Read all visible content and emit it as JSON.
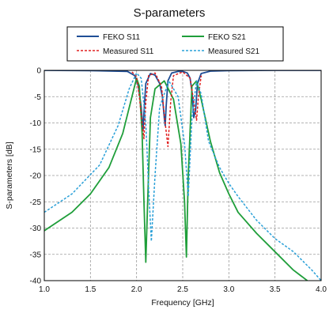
{
  "chart_data": {
    "type": "line",
    "title": "S-parameters",
    "xlabel": "Frequency [GHz]",
    "ylabel": "S-parameters [dB]",
    "xlim": [
      1.0,
      4.0
    ],
    "ylim": [
      -40,
      0
    ],
    "x_ticks": [
      1.0,
      1.5,
      2.0,
      2.5,
      3.0,
      3.5,
      4.0
    ],
    "x_tick_labels": [
      "1.0",
      "1.5",
      "2.0",
      "2.5",
      "3.0",
      "3.5",
      "4.0"
    ],
    "y_ticks": [
      0,
      -5,
      -10,
      -15,
      -20,
      -25,
      -30,
      -35,
      -40
    ],
    "y_tick_labels": [
      "0",
      "-5",
      "-10",
      "-15",
      "-20",
      "-25",
      "-30",
      "-35",
      "-40"
    ],
    "grid": true,
    "legend_position": "top",
    "series": [
      {
        "name": "FEKO S11",
        "color": "#1f4e96",
        "dash": "solid",
        "x": [
          1.0,
          1.5,
          1.9,
          1.98,
          2.02,
          2.05,
          2.07,
          2.08,
          2.1,
          2.15,
          2.2,
          2.25,
          2.28,
          2.3,
          2.31,
          2.32,
          2.34,
          2.38,
          2.45,
          2.5,
          2.55,
          2.58,
          2.6,
          2.62,
          2.64,
          2.66,
          2.7,
          2.8,
          3.0,
          3.5,
          4.0
        ],
        "y": [
          0,
          -0.05,
          -0.2,
          -1.0,
          -3.0,
          -7.0,
          -11.5,
          -8.0,
          -2.5,
          -0.6,
          -0.9,
          -2.5,
          -5.0,
          -9.0,
          -10.5,
          -7.0,
          -2.0,
          -0.5,
          -0.2,
          -0.2,
          -0.5,
          -1.5,
          -4.0,
          -9.0,
          -7.5,
          -2.5,
          -0.6,
          -0.15,
          -0.05,
          0,
          0
        ]
      },
      {
        "name": "FEKO S21",
        "color": "#1f9e3a",
        "dash": "solid",
        "x": [
          1.0,
          1.3,
          1.5,
          1.7,
          1.85,
          1.95,
          2.0,
          2.03,
          2.06,
          2.08,
          2.1,
          2.12,
          2.15,
          2.2,
          2.3,
          2.4,
          2.48,
          2.52,
          2.54,
          2.56,
          2.6,
          2.65,
          2.7,
          2.8,
          2.9,
          3.0,
          3.1,
          3.3,
          3.5,
          3.7,
          3.85
        ],
        "y": [
          -30.5,
          -27.0,
          -23.5,
          -18.5,
          -12.0,
          -5.0,
          -1.5,
          -3.0,
          -12.0,
          -25.0,
          -36.5,
          -25.0,
          -9.0,
          -3.5,
          -2.0,
          -5.5,
          -14.0,
          -25.0,
          -35.5,
          -20.0,
          -3.0,
          -2.0,
          -5.5,
          -13.5,
          -19.5,
          -23.5,
          -27.0,
          -31.0,
          -34.5,
          -38.0,
          -40.0
        ]
      },
      {
        "name": "Measured S11",
        "color": "#e02020",
        "dash": "dashed",
        "x": [
          1.95,
          2.0,
          2.03,
          2.06,
          2.08,
          2.1,
          2.13,
          2.2,
          2.27,
          2.31,
          2.34,
          2.37,
          2.4,
          2.5,
          2.58,
          2.62,
          2.65,
          2.67,
          2.7
        ],
        "y": [
          -0.3,
          -1.2,
          -5.0,
          -10.0,
          -13.0,
          -6.0,
          -1.0,
          -0.5,
          -3.0,
          -10.0,
          -14.5,
          -6.0,
          -1.0,
          -0.3,
          -1.5,
          -6.0,
          -9.5,
          -5.0,
          -1.0
        ]
      },
      {
        "name": "Measured S21",
        "color": "#2aa0d8",
        "dash": "dashed",
        "x": [
          1.0,
          1.3,
          1.6,
          1.8,
          1.92,
          2.0,
          2.05,
          2.1,
          2.13,
          2.16,
          2.2,
          2.25,
          2.35,
          2.45,
          2.52,
          2.56,
          2.6,
          2.65,
          2.7,
          2.78,
          2.9,
          3.0,
          3.1,
          3.3,
          3.5,
          3.7,
          3.9,
          4.0
        ],
        "y": [
          -27.0,
          -23.5,
          -18.0,
          -10.5,
          -3.5,
          -0.5,
          -1.5,
          -10.0,
          -22.0,
          -32.5,
          -20.0,
          -7.0,
          -2.0,
          -5.0,
          -14.0,
          -24.0,
          -9.0,
          -2.0,
          -4.5,
          -13.5,
          -18.5,
          -21.5,
          -24.0,
          -28.5,
          -32.0,
          -34.5,
          -38.0,
          -40.0
        ]
      }
    ]
  }
}
